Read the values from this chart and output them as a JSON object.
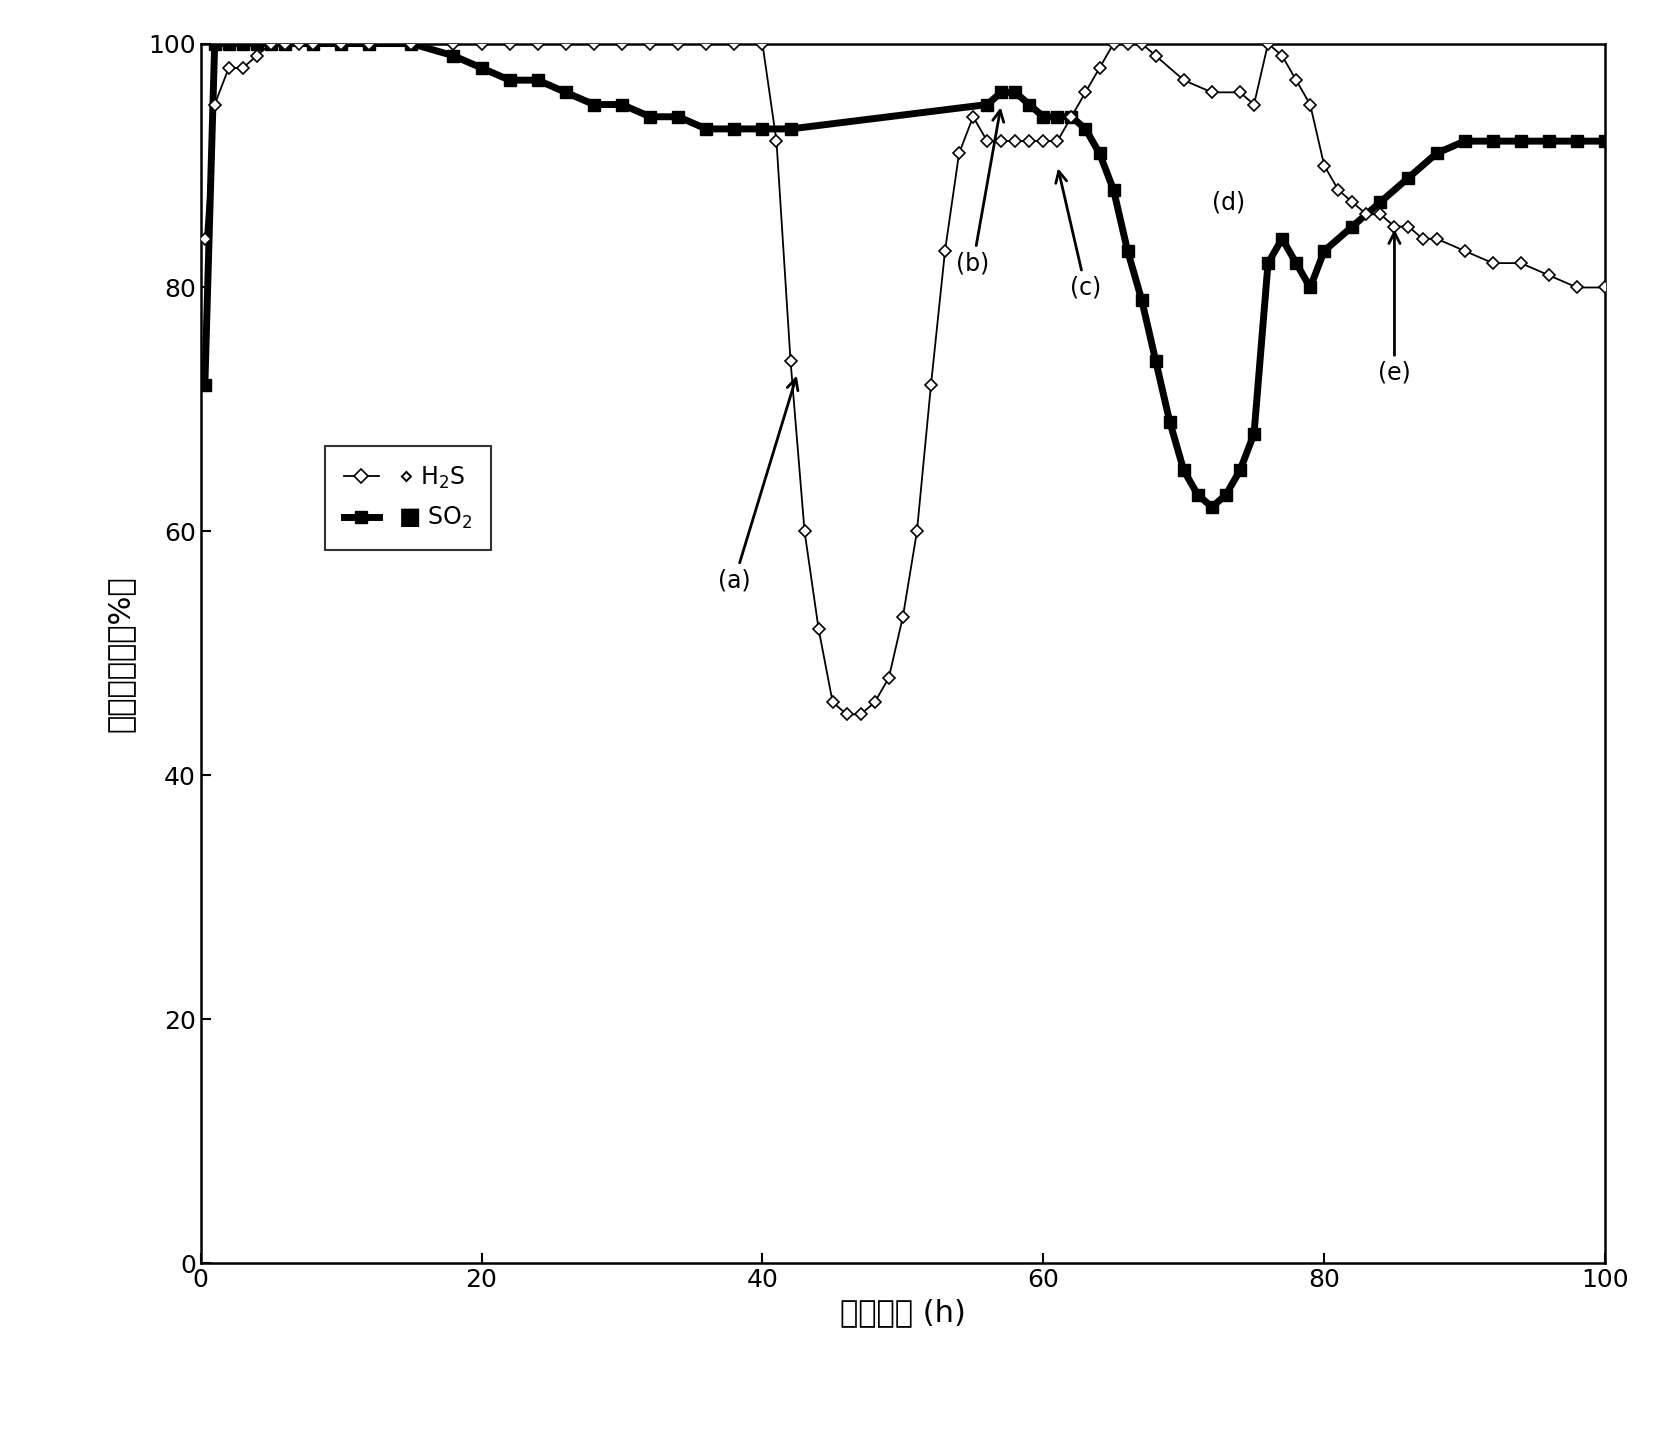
{
  "h2s_x": [
    0.3,
    1,
    2,
    3,
    4,
    5,
    6,
    7,
    8,
    10,
    12,
    15,
    18,
    20,
    22,
    24,
    26,
    28,
    30,
    32,
    34,
    36,
    38,
    40,
    41,
    42,
    43,
    44,
    45,
    46,
    47,
    48,
    49,
    50,
    51,
    52,
    53,
    54,
    55,
    56,
    57,
    58,
    59,
    60,
    61,
    62,
    63,
    64,
    65,
    66,
    67,
    68,
    70,
    72,
    74,
    75,
    76,
    77,
    78,
    79,
    80,
    81,
    82,
    83,
    84,
    85,
    86,
    87,
    88,
    90,
    92,
    94,
    96,
    98,
    100
  ],
  "h2s_y": [
    84,
    95,
    98,
    98,
    99,
    100,
    100,
    100,
    100,
    100,
    100,
    100,
    100,
    100,
    100,
    100,
    100,
    100,
    100,
    100,
    100,
    100,
    100,
    100,
    92,
    74,
    60,
    52,
    46,
    45,
    45,
    46,
    48,
    53,
    60,
    72,
    83,
    91,
    94,
    92,
    92,
    92,
    92,
    92,
    92,
    94,
    96,
    98,
    100,
    100,
    100,
    99,
    97,
    96,
    96,
    95,
    100,
    99,
    97,
    95,
    90,
    88,
    87,
    86,
    86,
    85,
    85,
    84,
    84,
    83,
    82,
    82,
    81,
    80,
    80
  ],
  "so2_x": [
    0.3,
    1,
    2,
    3,
    4,
    5,
    6,
    8,
    10,
    12,
    15,
    18,
    20,
    22,
    24,
    26,
    28,
    30,
    32,
    34,
    36,
    38,
    40,
    42,
    56,
    57,
    58,
    59,
    60,
    61,
    62,
    63,
    64,
    65,
    66,
    67,
    68,
    69,
    70,
    71,
    72,
    73,
    74,
    75,
    76,
    77,
    78,
    79,
    80,
    82,
    84,
    86,
    88,
    90,
    92,
    94,
    96,
    98,
    100
  ],
  "so2_y": [
    72,
    100,
    100,
    100,
    100,
    100,
    100,
    100,
    100,
    100,
    100,
    99,
    98,
    97,
    97,
    96,
    95,
    95,
    94,
    94,
    93,
    93,
    93,
    93,
    95,
    96,
    96,
    95,
    94,
    94,
    94,
    93,
    91,
    88,
    83,
    79,
    74,
    69,
    65,
    63,
    62,
    63,
    65,
    68,
    82,
    84,
    82,
    80,
    83,
    85,
    87,
    89,
    91,
    92,
    92,
    92,
    92,
    92,
    92
  ],
  "xlabel": "反应时间 (h)",
  "ylabel": "硕去除效率（%）",
  "xlim": [
    0,
    100
  ],
  "ylim": [
    0,
    100
  ],
  "xticks": [
    0,
    20,
    40,
    60,
    80,
    100
  ],
  "yticks": [
    0,
    20,
    40,
    60,
    80,
    100
  ],
  "fontsize_label": 22,
  "fontsize_tick": 18,
  "fontsize_legend": 17,
  "fontsize_annot": 17
}
